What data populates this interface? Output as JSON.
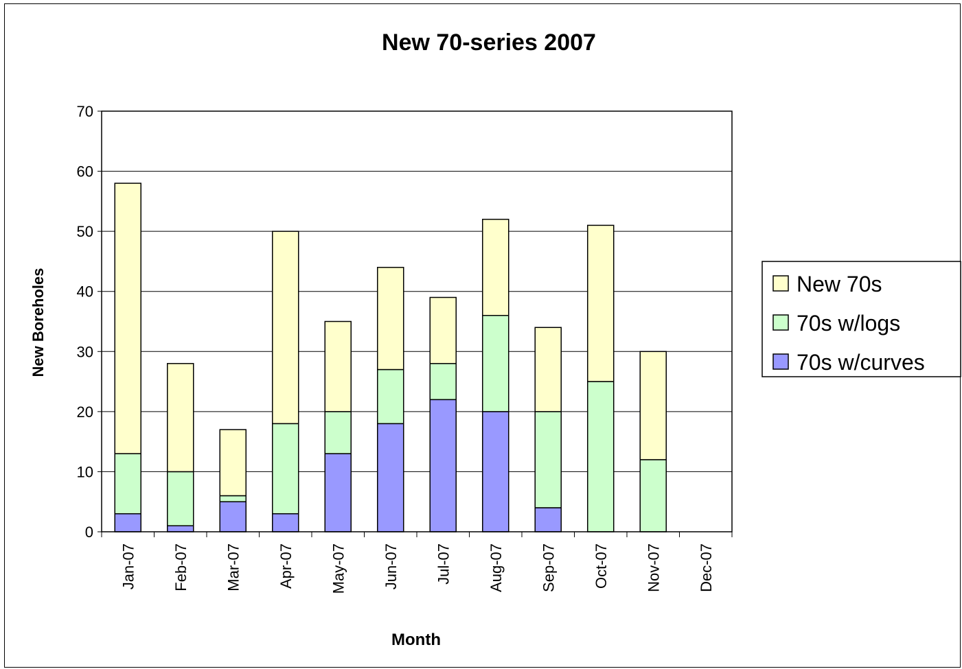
{
  "chart_data": {
    "type": "bar",
    "stacked": true,
    "title": "New 70-series 2007",
    "xlabel": "Month",
    "ylabel": "New Boreholes",
    "ylim": [
      0,
      70
    ],
    "yticks": [
      0,
      10,
      20,
      30,
      40,
      50,
      60,
      70
    ],
    "grid": true,
    "legend_position": "right",
    "categories": [
      "Jan-07",
      "Feb-07",
      "Mar-07",
      "Apr-07",
      "May-07",
      "Jun-07",
      "Jul-07",
      "Aug-07",
      "Sep-07",
      "Oct-07",
      "Nov-07",
      "Dec-07"
    ],
    "series": [
      {
        "name": "70s w/curves",
        "color": "#9999ff",
        "values": [
          3,
          1,
          5,
          3,
          13,
          18,
          22,
          20,
          4,
          0,
          0,
          0
        ]
      },
      {
        "name": "70s w/logs",
        "color": "#ccffcc",
        "values": [
          10,
          9,
          1,
          15,
          7,
          9,
          6,
          16,
          16,
          25,
          12,
          0
        ]
      },
      {
        "name": "New 70s",
        "color": "#ffffcc",
        "values": [
          45,
          18,
          11,
          32,
          15,
          17,
          11,
          16,
          14,
          26,
          18,
          0
        ]
      }
    ],
    "legend_order": [
      "New 70s",
      "70s w/logs",
      "70s w/curves"
    ]
  }
}
